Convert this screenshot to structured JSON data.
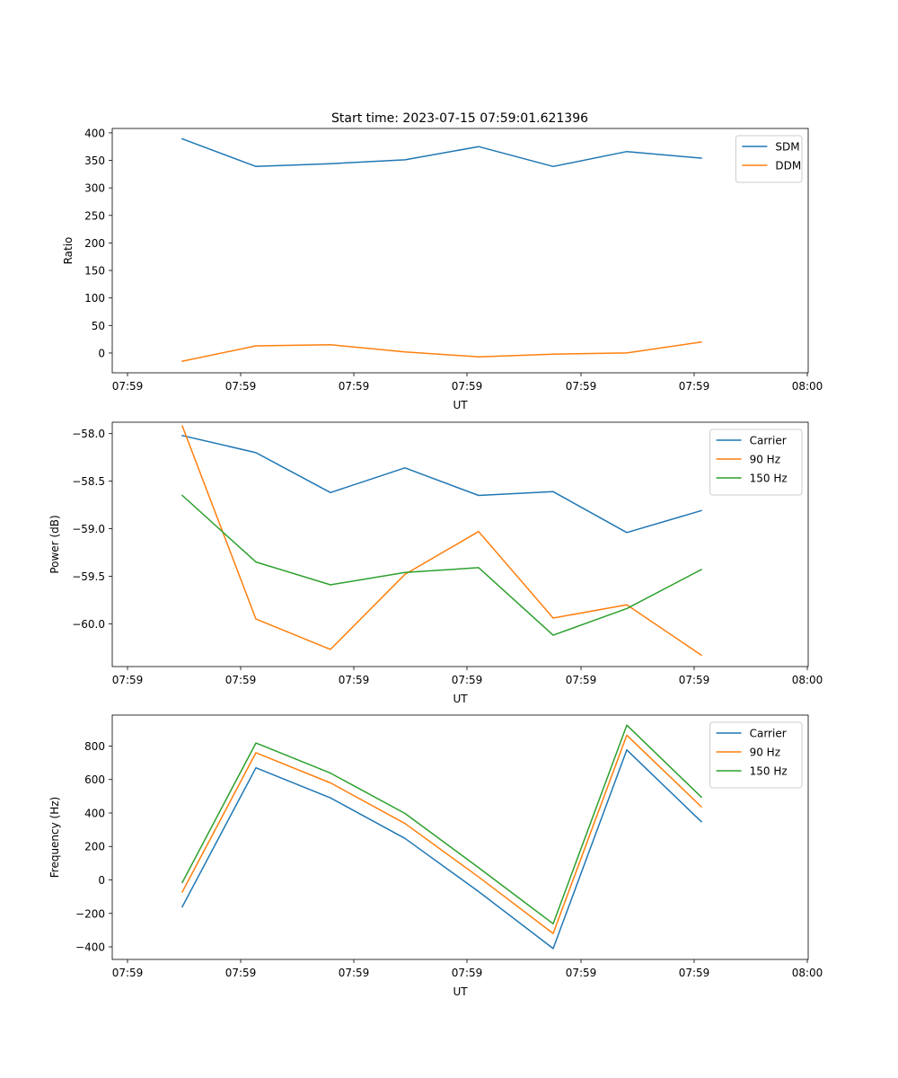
{
  "title": "Start time: 2023-07-15 07:59:01.621396",
  "colors": {
    "blue": "#1f77b4",
    "orange": "#ff7f0e",
    "green": "#2ca02c"
  },
  "chart_data": [
    {
      "type": "line",
      "xlabel": "UT",
      "ylabel": "Ratio",
      "x_ticks": [
        "07:59",
        "07:59",
        "07:59",
        "07:59",
        "07:59",
        "07:59",
        "08:00"
      ],
      "y_ticks": [
        "0",
        "50",
        "100",
        "150",
        "200",
        "250",
        "300",
        "350",
        "400"
      ],
      "ylim": [
        -36,
        408
      ],
      "x": [
        1,
        2,
        3,
        4,
        5,
        6,
        7,
        8
      ],
      "series": [
        {
          "name": "SDM",
          "color": "#1f77b4",
          "values": [
            389,
            339,
            344,
            351,
            375,
            339,
            366,
            354
          ]
        },
        {
          "name": "DDM",
          "color": "#ff7f0e",
          "values": [
            -15,
            13,
            15,
            2,
            -7,
            -2,
            0,
            20
          ]
        }
      ]
    },
    {
      "type": "line",
      "xlabel": "UT",
      "ylabel": "Power (dB)",
      "x_ticks": [
        "07:59",
        "07:59",
        "07:59",
        "07:59",
        "07:59",
        "07:59",
        "08:00"
      ],
      "y_ticks": [
        "−60.0",
        "−59.5",
        "−59.0",
        "−58.5",
        "−58.0"
      ],
      "ylim": [
        -60.45,
        -57.88
      ],
      "x": [
        1,
        2,
        3,
        4,
        5,
        6,
        7,
        8
      ],
      "series": [
        {
          "name": "Carrier",
          "color": "#1f77b4",
          "values": [
            -58.02,
            -58.2,
            -58.62,
            -58.36,
            -58.65,
            -58.61,
            -59.04,
            -58.81
          ]
        },
        {
          "name": "90 Hz",
          "color": "#ff7f0e",
          "values": [
            -57.92,
            -59.95,
            -60.27,
            -59.48,
            -59.03,
            -59.94,
            -59.8,
            -60.33
          ]
        },
        {
          "name": "150 Hz",
          "color": "#2ca02c",
          "values": [
            -58.65,
            -59.35,
            -59.59,
            -59.46,
            -59.41,
            -60.12,
            -59.84,
            -59.43
          ]
        }
      ]
    },
    {
      "type": "line",
      "xlabel": "UT",
      "ylabel": "Frequency (Hz)",
      "x_ticks": [
        "07:59",
        "07:59",
        "07:59",
        "07:59",
        "07:59",
        "07:59",
        "08:00"
      ],
      "y_ticks": [
        "−400",
        "−200",
        "0",
        "200",
        "400",
        "600",
        "800"
      ],
      "ylim": [
        -475,
        985
      ],
      "x": [
        1,
        2,
        3,
        4,
        5,
        6,
        7,
        8
      ],
      "series": [
        {
          "name": "Carrier",
          "color": "#1f77b4",
          "values": [
            -160,
            670,
            490,
            248,
            -70,
            -410,
            777,
            348
          ]
        },
        {
          "name": "90 Hz",
          "color": "#ff7f0e",
          "values": [
            -72,
            760,
            580,
            337,
            18,
            -320,
            865,
            437
          ]
        },
        {
          "name": "150 Hz",
          "color": "#2ca02c",
          "values": [
            -15,
            818,
            638,
            397,
            73,
            -262,
            925,
            495
          ]
        }
      ]
    }
  ]
}
